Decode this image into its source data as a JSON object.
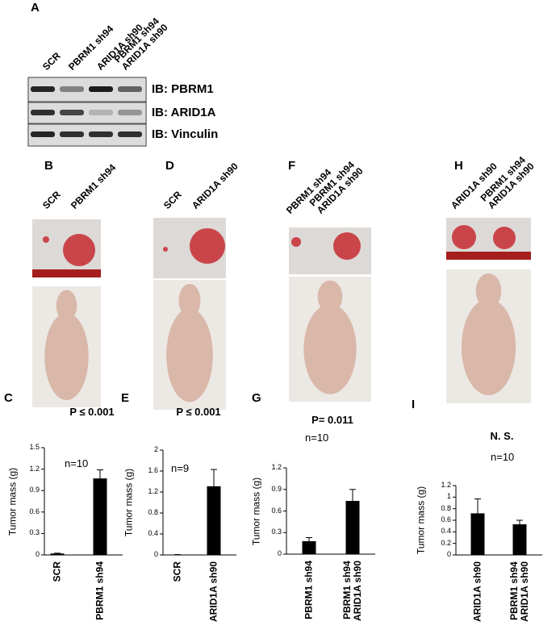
{
  "figure": {
    "panel_labels": [
      "A",
      "B",
      "C",
      "D",
      "E",
      "F",
      "G",
      "H",
      "I"
    ],
    "blot": {
      "lanes": [
        "SCR",
        "PBRM1 sh94",
        "ARID1A sh90",
        "PBRM1 sh94\nARID1A sh90"
      ],
      "rows": [
        "IB: PBRM1",
        "IB: ARID1A",
        "IB: Vinculin"
      ]
    },
    "photos": [
      [
        "SCR",
        "PBRM1 sh94"
      ],
      [
        "SCR",
        "ARID1A sh90"
      ],
      [
        "PBRM1 sh94",
        "PBRM1 sh94\nARID1A sh90"
      ],
      [
        "ARID1A sh90",
        "PBRM1 sh94\nARID1A sh90"
      ]
    ]
  },
  "chart_data": [
    {
      "type": "bar",
      "title": "P ≤ 0.001",
      "y_label": "Tumor mass (g)",
      "annotation": "n=10",
      "categories": [
        "SCR",
        "PBRM1 sh94"
      ],
      "values": [
        0.02,
        1.07
      ],
      "errors": [
        0.005,
        0.12
      ],
      "color": "#000000",
      "ylim": [
        0,
        1.5
      ],
      "yticks": [
        0,
        0.3,
        0.6,
        0.9,
        1.2,
        1.5
      ]
    },
    {
      "type": "bar",
      "title": "P ≤ 0.001",
      "y_label": "Tumor mass (g)",
      "annotation": "n=9",
      "categories": [
        "SCR",
        "ARID1A sh90"
      ],
      "values": [
        0.005,
        1.31
      ],
      "errors": [
        0.002,
        0.32
      ],
      "color": "#000000",
      "ylim": [
        0,
        2
      ],
      "yticks": [
        0,
        0.4,
        0.8,
        1.2,
        1.6,
        2
      ]
    },
    {
      "type": "bar",
      "title": "P= 0.011",
      "y_label": "Tumor mass (g)",
      "annotation": "n=10",
      "categories": [
        "PBRM1 sh94",
        "PBRM1 sh94\nARID1A sh90"
      ],
      "values": [
        0.18,
        0.74
      ],
      "errors": [
        0.05,
        0.16
      ],
      "color": "#000000",
      "ylim": [
        0,
        1.2
      ],
      "yticks": [
        0,
        0.3,
        0.6,
        0.9,
        1.2
      ]
    },
    {
      "type": "bar",
      "title": "N. S.",
      "y_label": "Tumor mass (g)",
      "annotation": "n=10",
      "categories": [
        "ARID1A sh90",
        "PBRM1 sh94\nARID1A sh90"
      ],
      "values": [
        0.72,
        0.53
      ],
      "errors": [
        0.25,
        0.07
      ],
      "color": "#000000",
      "ylim": [
        0,
        1.2
      ],
      "yticks": [
        0,
        0.2,
        0.4,
        0.6,
        0.8,
        1,
        1.2
      ]
    }
  ]
}
